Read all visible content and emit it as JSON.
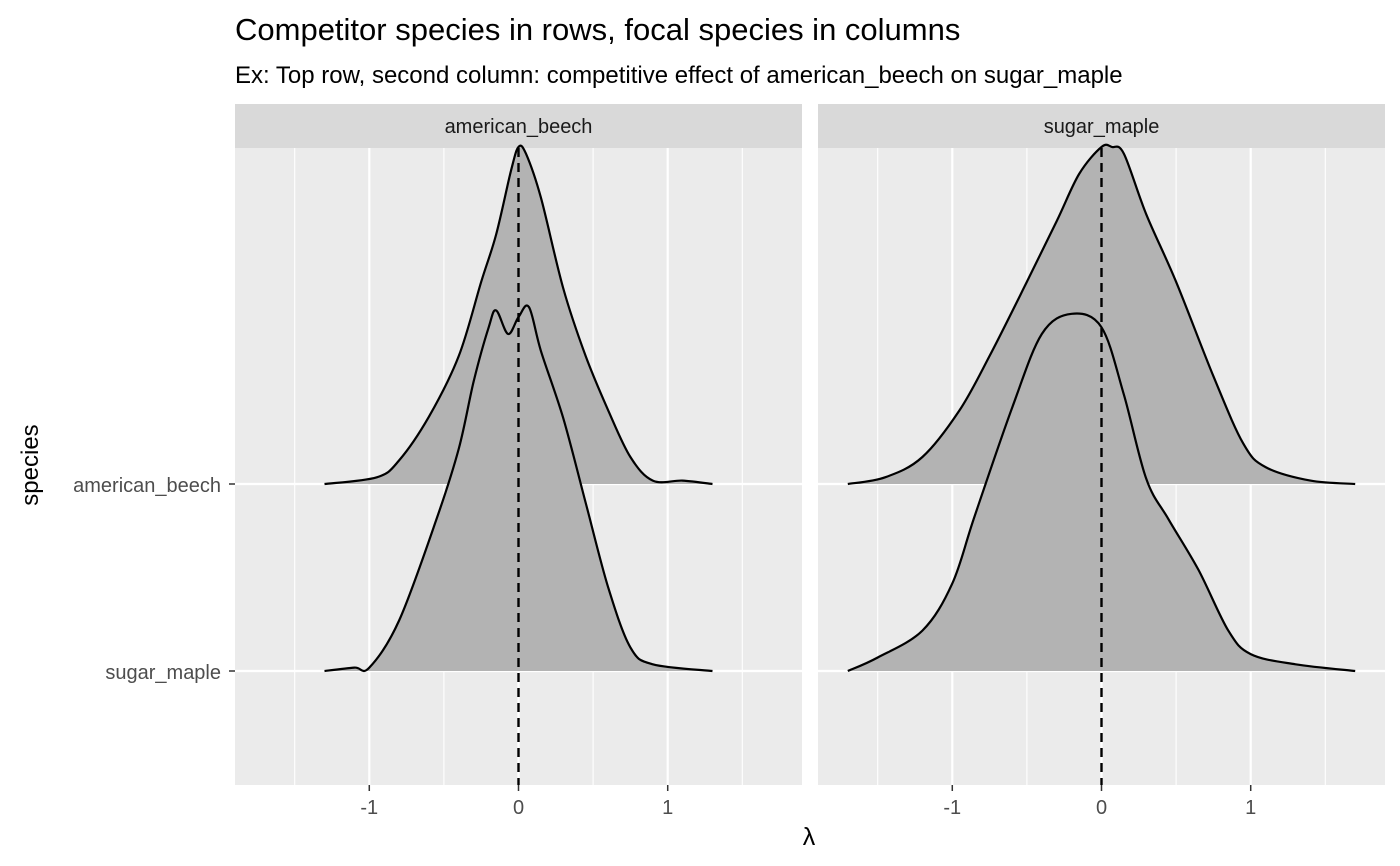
{
  "chart_data": {
    "type": "ridgeline-density",
    "title": "Competitor species in rows, focal species in columns",
    "subtitle": "Ex: Top row, second column: competitive effect of american_beech on sugar_maple",
    "xlabel": "λ",
    "ylabel": "species",
    "xlim": [
      -1.9,
      1.9
    ],
    "x_ticks": [
      -1,
      0,
      1
    ],
    "x_tick_labels": [
      "-1",
      "0",
      "1"
    ],
    "y_categories": [
      "american_beech",
      "sugar_maple"
    ],
    "reference_line": {
      "x": 0,
      "style": "dashed"
    },
    "colors": {
      "panel": "#ebebeb",
      "grid": "#ffffff",
      "strip": "#d9d9d9",
      "fill": "#b3b3b3",
      "line": "#000000"
    },
    "grid": true,
    "panels": [
      {
        "label": "american_beech",
        "ridges": [
          {
            "competitor": "american_beech",
            "x": [
              -1.3,
              -0.95,
              -0.8,
              -0.6,
              -0.4,
              -0.25,
              -0.15,
              -0.05,
              0.0,
              0.05,
              0.15,
              0.3,
              0.45,
              0.6,
              0.75,
              0.9,
              1.1,
              1.3
            ],
            "density": [
              0.0,
              0.02,
              0.07,
              0.2,
              0.38,
              0.6,
              0.74,
              0.93,
              1.0,
              0.98,
              0.85,
              0.58,
              0.38,
              0.22,
              0.08,
              0.01,
              0.01,
              0.0
            ]
          },
          {
            "competitor": "sugar_maple",
            "x": [
              -1.3,
              -1.1,
              -1.0,
              -0.8,
              -0.55,
              -0.4,
              -0.3,
              -0.2,
              -0.15,
              -0.07,
              0.0,
              0.07,
              0.15,
              0.3,
              0.45,
              0.6,
              0.75,
              0.9,
              1.3
            ],
            "density": [
              0.0,
              0.01,
              0.01,
              0.15,
              0.45,
              0.66,
              0.86,
              1.02,
              1.07,
              1.0,
              1.05,
              1.08,
              0.95,
              0.75,
              0.5,
              0.25,
              0.07,
              0.02,
              0.0
            ]
          }
        ]
      },
      {
        "label": "sugar_maple",
        "ridges": [
          {
            "competitor": "american_beech",
            "x": [
              -1.7,
              -1.45,
              -1.2,
              -0.95,
              -0.75,
              -0.5,
              -0.3,
              -0.15,
              0.0,
              0.07,
              0.15,
              0.3,
              0.5,
              0.75,
              0.95,
              1.1,
              1.4,
              1.7
            ],
            "density": [
              0.0,
              0.02,
              0.08,
              0.22,
              0.38,
              0.6,
              0.78,
              0.92,
              1.0,
              1.0,
              0.98,
              0.8,
              0.6,
              0.32,
              0.12,
              0.05,
              0.01,
              0.0
            ]
          },
          {
            "competitor": "sugar_maple",
            "x": [
              -1.7,
              -1.5,
              -1.2,
              -1.0,
              -0.85,
              -0.6,
              -0.4,
              -0.2,
              0.0,
              0.15,
              0.3,
              0.45,
              0.65,
              0.85,
              1.0,
              1.3,
              1.7
            ],
            "density": [
              0.0,
              0.04,
              0.12,
              0.26,
              0.46,
              0.78,
              1.0,
              1.06,
              1.02,
              0.82,
              0.57,
              0.45,
              0.3,
              0.12,
              0.05,
              0.02,
              0.0
            ]
          }
        ]
      }
    ]
  }
}
